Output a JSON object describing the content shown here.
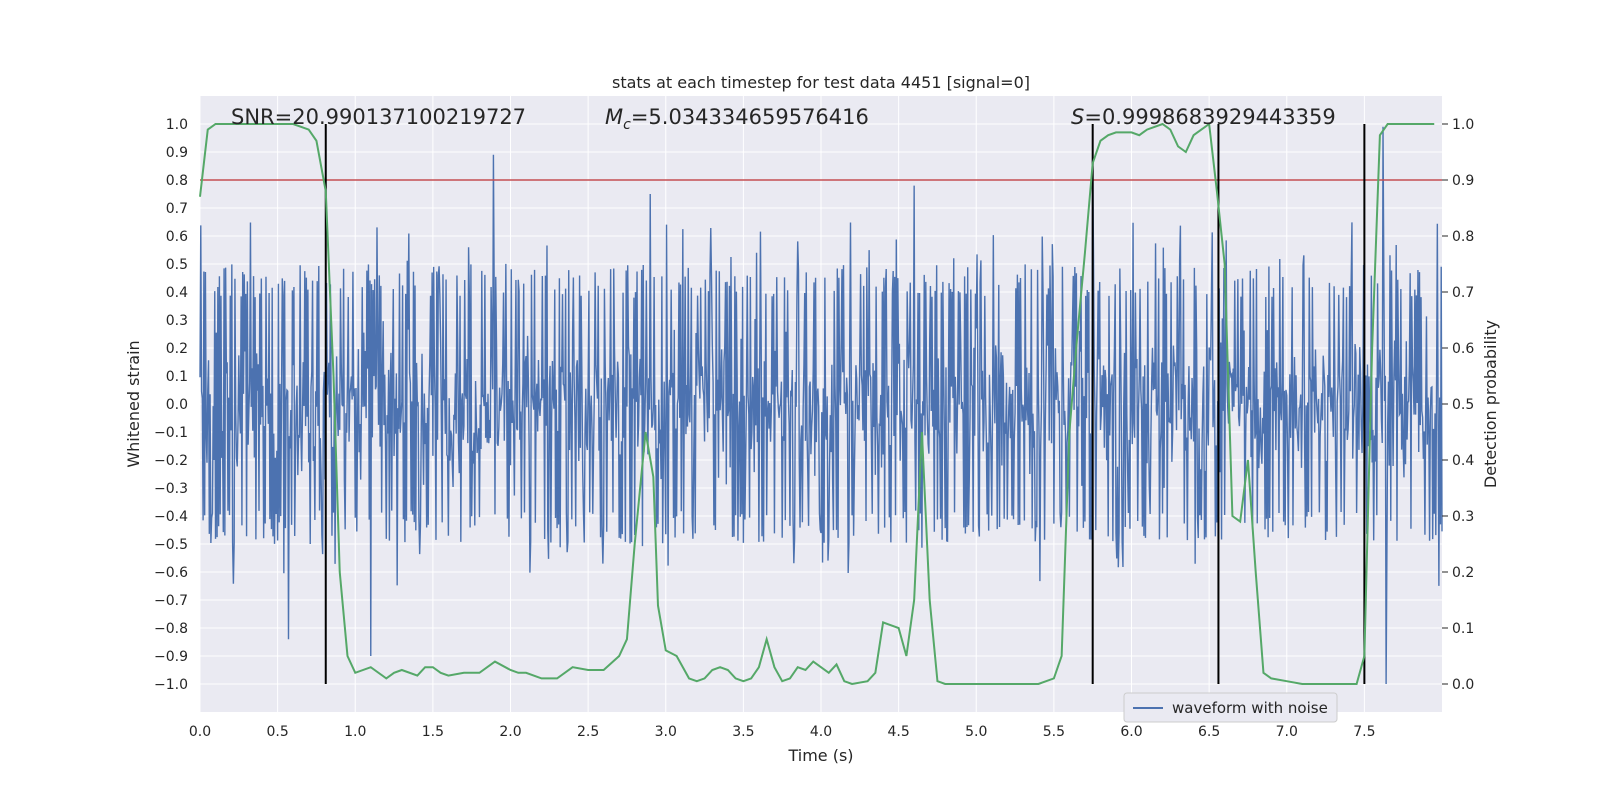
{
  "chart_data": {
    "type": "line",
    "title": "stats at each timestep for test data 4451 [signal=0]",
    "xlabel": "Time (s)",
    "ylabel": "Whitened strain",
    "ylabel_right": "Detection probability",
    "xlim": [
      0.0,
      8.0
    ],
    "ylim": [
      -1.1,
      1.1
    ],
    "ylim_right": [
      -0.05,
      1.05
    ],
    "x_ticks": [
      "0.0",
      "0.5",
      "1.0",
      "1.5",
      "2.0",
      "2.5",
      "3.0",
      "3.5",
      "4.0",
      "4.5",
      "5.0",
      "5.5",
      "6.0",
      "6.5",
      "7.0",
      "7.5"
    ],
    "y_ticks": [
      "−1.0",
      "−0.9",
      "−0.8",
      "−0.7",
      "−0.6",
      "−0.5",
      "−0.4",
      "−0.3",
      "−0.2",
      "−0.1",
      "0.0",
      "0.1",
      "0.2",
      "0.3",
      "0.4",
      "0.5",
      "0.6",
      "0.7",
      "0.8",
      "0.9",
      "1.0"
    ],
    "y_right_ticks": [
      "0.0",
      "0.1",
      "0.2",
      "0.3",
      "0.4",
      "0.5",
      "0.6",
      "0.7",
      "0.8",
      "0.9",
      "1.0"
    ],
    "grid": true,
    "legend_placement": "lower-right",
    "annotations": {
      "snr": "SNR=20.990137100219727",
      "mc_symbol": "M",
      "mc_sub": "c",
      "mc_value": "=5.034334659576416",
      "s_symbol": "S",
      "s_value": "=0.9998683929443359"
    },
    "threshold": {
      "value": 0.9,
      "axis": "right",
      "color": "#c44e52"
    },
    "vertical_markers": [
      0.81,
      5.75,
      6.56,
      7.5
    ],
    "series": [
      {
        "name": "waveform with noise",
        "axis": "left",
        "color": "#4c72b0",
        "kind": "noise",
        "core_amplitude": 0.38,
        "typical_peak": 0.55,
        "max_abs": 1.0,
        "notable_spikes": [
          {
            "x": 0.57,
            "y": -0.84
          },
          {
            "x": 1.1,
            "y": -0.9
          },
          {
            "x": 1.89,
            "y": 0.89
          },
          {
            "x": 2.9,
            "y": 0.75
          },
          {
            "x": 4.6,
            "y": 0.78
          },
          {
            "x": 5.75,
            "y": 0.89
          },
          {
            "x": 7.64,
            "y": -1.0
          },
          {
            "x": 7.62,
            "y": 0.99
          }
        ]
      },
      {
        "name": "",
        "axis": "right",
        "color": "#55a868",
        "x": [
          0.0,
          0.05,
          0.1,
          0.2,
          0.3,
          0.4,
          0.5,
          0.6,
          0.7,
          0.75,
          0.81,
          0.86,
          0.9,
          0.95,
          1.0,
          1.1,
          1.2,
          1.25,
          1.3,
          1.4,
          1.45,
          1.5,
          1.55,
          1.6,
          1.7,
          1.8,
          1.9,
          2.0,
          2.05,
          2.1,
          2.2,
          2.3,
          2.4,
          2.5,
          2.6,
          2.7,
          2.75,
          2.8,
          2.87,
          2.92,
          2.95,
          3.0,
          3.07,
          3.15,
          3.2,
          3.25,
          3.3,
          3.35,
          3.4,
          3.45,
          3.5,
          3.55,
          3.6,
          3.65,
          3.7,
          3.75,
          3.8,
          3.85,
          3.9,
          3.95,
          4.0,
          4.05,
          4.1,
          4.15,
          4.2,
          4.3,
          4.35,
          4.4,
          4.5,
          4.55,
          4.6,
          4.65,
          4.7,
          4.75,
          4.8,
          4.85,
          4.9,
          5.0,
          5.1,
          5.2,
          5.3,
          5.4,
          5.5,
          5.55,
          5.6,
          5.65,
          5.7,
          5.75,
          5.8,
          5.85,
          5.9,
          6.0,
          6.05,
          6.1,
          6.15,
          6.2,
          6.25,
          6.3,
          6.35,
          6.4,
          6.45,
          6.5,
          6.55,
          6.6,
          6.65,
          6.7,
          6.75,
          6.8,
          6.85,
          6.9,
          7.0,
          7.1,
          7.2,
          7.3,
          7.4,
          7.45,
          7.5,
          7.55,
          7.6,
          7.65,
          7.7,
          7.8,
          7.9,
          7.95
        ],
        "values": [
          0.87,
          0.99,
          1.0,
          1.0,
          1.0,
          1.0,
          1.0,
          1.0,
          0.99,
          0.97,
          0.88,
          0.55,
          0.2,
          0.05,
          0.02,
          0.03,
          0.01,
          0.02,
          0.025,
          0.015,
          0.03,
          0.03,
          0.02,
          0.015,
          0.02,
          0.02,
          0.04,
          0.025,
          0.02,
          0.02,
          0.01,
          0.01,
          0.03,
          0.025,
          0.025,
          0.05,
          0.08,
          0.25,
          0.45,
          0.37,
          0.14,
          0.06,
          0.05,
          0.01,
          0.005,
          0.01,
          0.025,
          0.03,
          0.025,
          0.01,
          0.005,
          0.01,
          0.03,
          0.08,
          0.03,
          0.005,
          0.01,
          0.03,
          0.025,
          0.04,
          0.03,
          0.02,
          0.035,
          0.005,
          0.0,
          0.005,
          0.02,
          0.11,
          0.1,
          0.05,
          0.15,
          0.45,
          0.15,
          0.005,
          0.0,
          0.0,
          0.0,
          0.0,
          0.0,
          0.0,
          0.0,
          0.0,
          0.01,
          0.05,
          0.45,
          0.62,
          0.77,
          0.93,
          0.97,
          0.98,
          0.985,
          0.985,
          0.98,
          0.99,
          0.995,
          1.0,
          0.99,
          0.96,
          0.95,
          0.98,
          0.99,
          1.0,
          0.88,
          0.75,
          0.3,
          0.29,
          0.4,
          0.2,
          0.02,
          0.01,
          0.005,
          0.0,
          0.0,
          0.0,
          0.0,
          0.0,
          0.05,
          0.6,
          0.98,
          1.0,
          1.0,
          1.0,
          1.0,
          1.0
        ]
      }
    ]
  }
}
